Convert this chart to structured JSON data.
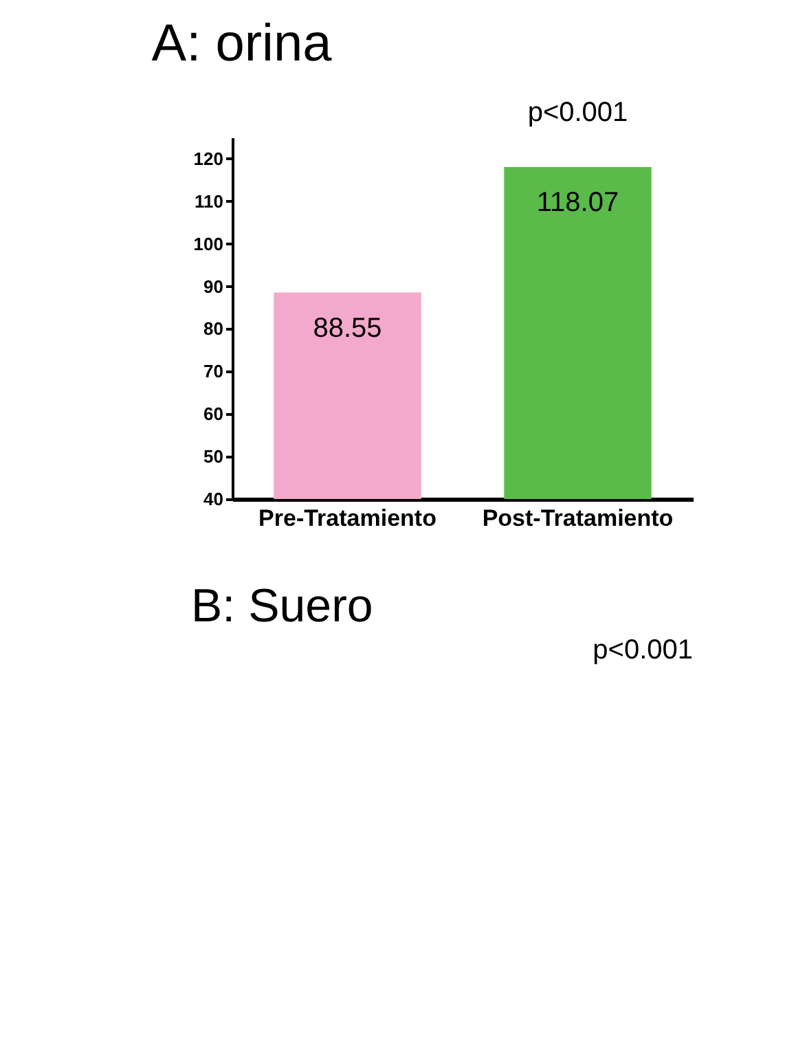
{
  "chart_data": [
    {
      "type": "bar",
      "title": "A: orina",
      "categories": [
        "Pre-Tratamiento",
        "Post-Tratamiento"
      ],
      "values": [
        88.55,
        118.07
      ],
      "colors": [
        "#f3a9cc",
        "#5bbb4a"
      ],
      "ylim": [
        40,
        125
      ],
      "yticks": [
        40,
        50,
        60,
        70,
        80,
        90,
        100,
        110,
        120
      ],
      "grid": false,
      "data_labels": true,
      "annotations": [
        "p<0.001"
      ]
    },
    {
      "type": "other",
      "title": "B: Suero",
      "annotations": [
        "p<0.001"
      ]
    }
  ]
}
